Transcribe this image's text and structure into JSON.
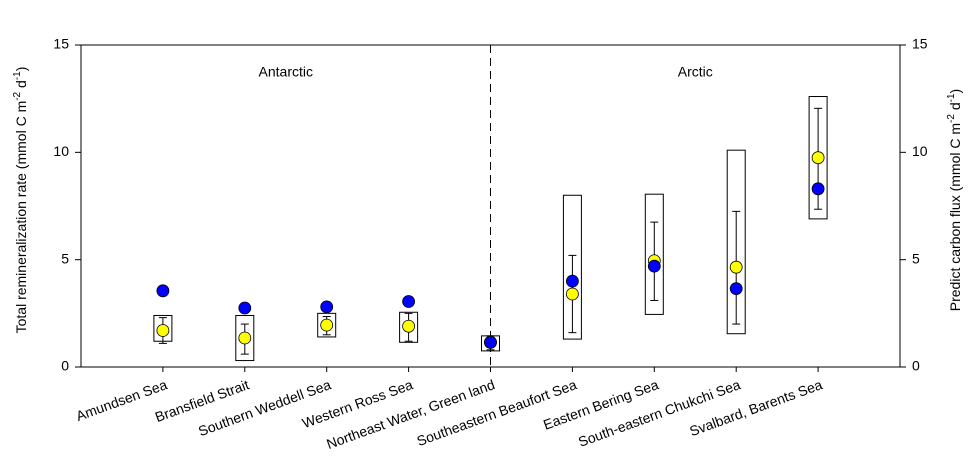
{
  "chart_data": {
    "type": "range-dot",
    "categories": [
      "Amundsen Sea",
      "Bransfield Strait",
      "Southern Weddell Sea",
      "Western Ross Sea",
      "Northeast Water, Green land",
      "Southeastern Beaufort Sea",
      "Eastern Bering Sea",
      "South-eastern Chukchi Sea",
      "Svalbard, Barents Sea"
    ],
    "ylabel": {
      "text": "Total remineralization rate (mmol C m",
      "sup1": "-2",
      "mid": " d",
      "sup2": "-1",
      "end": ")"
    },
    "y2label": {
      "text": "Predict carbon flux (mmol C m",
      "sup1": "-2",
      "mid": " d",
      "sup2": "-1",
      "end": ")"
    },
    "annotations": [
      "Antarctic",
      "Arctic"
    ],
    "ylim": [
      0,
      15
    ],
    "yticks": [
      0,
      5,
      10,
      15
    ],
    "y2lim": [
      0,
      15
    ],
    "y2ticks": [
      0,
      5,
      10,
      15
    ],
    "ranges": {
      "color": "#000000",
      "low": [
        1.2,
        0.3,
        1.4,
        1.15,
        0.75,
        1.3,
        2.45,
        1.55,
        6.9
      ],
      "high": [
        2.4,
        2.4,
        2.5,
        2.55,
        1.45,
        8.0,
        8.05,
        10.1,
        12.6
      ]
    },
    "series": [
      {
        "color": "#ffff00",
        "axis": "y2",
        "values": [
          1.7,
          1.35,
          1.95,
          1.9,
          1.15,
          3.4,
          4.95,
          4.65,
          9.75
        ],
        "error_low": [
          1.1,
          0.6,
          1.5,
          1.2,
          0.8,
          1.6,
          3.1,
          2.0,
          7.35
        ],
        "error_high": [
          2.3,
          2.0,
          2.35,
          2.5,
          1.45,
          5.2,
          6.75,
          7.25,
          12.05
        ]
      },
      {
        "color": "#0000ff",
        "values": [
          3.55,
          2.75,
          2.8,
          3.05,
          1.15,
          4.0,
          4.7,
          3.65,
          8.3
        ]
      }
    ]
  }
}
